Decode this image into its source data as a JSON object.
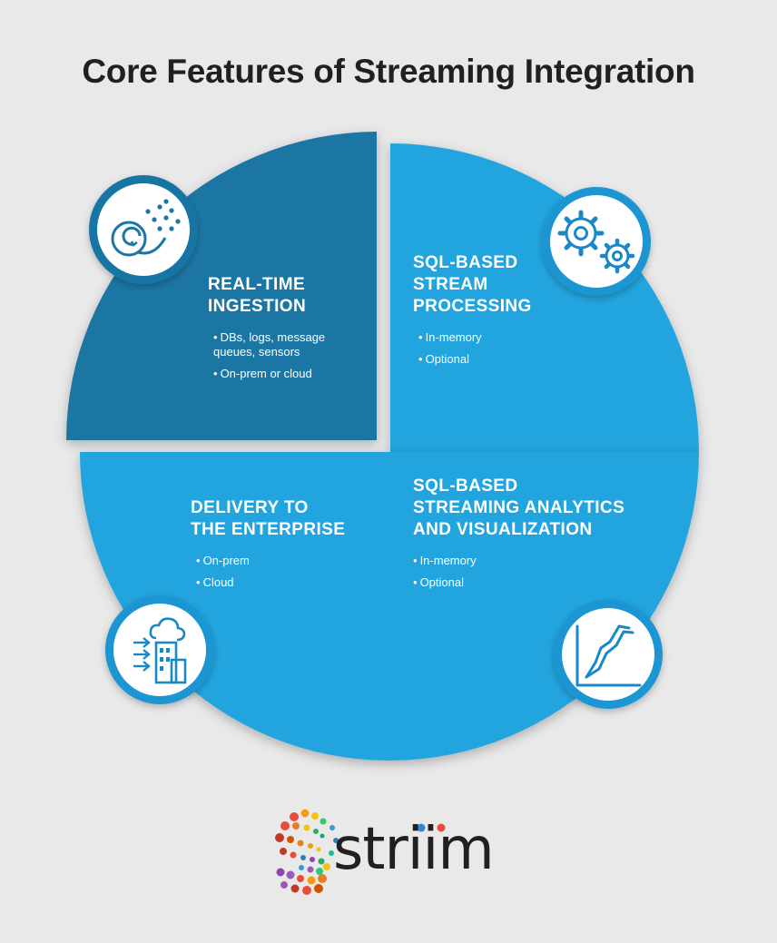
{
  "title": "Core Features of Streaming Integration",
  "colors": {
    "background": "#e9e9ea",
    "dark_blue": "#1875a3",
    "light_blue": "#21a3dd",
    "icon_ring": "#1b8ccc",
    "white": "#ffffff"
  },
  "quadrants": [
    {
      "id": "top-left",
      "title": "REAL-TIME\nINGESTION",
      "bullets": [
        "DBs, logs, message\nqueues, sensors",
        "On-prem or cloud"
      ],
      "icon": "ingestion-icon"
    },
    {
      "id": "top-right",
      "title": "SQL-BASED\nSTREAM\nPROCESSING",
      "bullets": [
        "In-memory",
        "Optional"
      ],
      "icon": "gears-icon"
    },
    {
      "id": "bottom-left",
      "title": "DELIVERY TO\nTHE ENTERPRISE",
      "bullets": [
        "On-prem",
        "Cloud"
      ],
      "icon": "cloud-building-icon"
    },
    {
      "id": "bottom-right",
      "title": "SQL-BASED\nSTREAMING ANALYTICS\nAND VISUALIZATION",
      "bullets": [
        "In-memory",
        "Optional"
      ],
      "icon": "line-chart-icon"
    }
  ],
  "logo": {
    "text": "striim",
    "icon": "striim-logo-mark"
  }
}
